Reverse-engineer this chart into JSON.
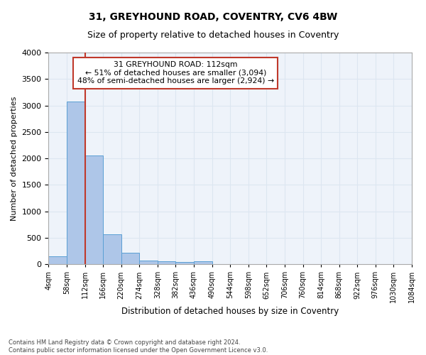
{
  "title1": "31, GREYHOUND ROAD, COVENTRY, CV6 4BW",
  "title2": "Size of property relative to detached houses in Coventry",
  "xlabel": "Distribution of detached houses by size in Coventry",
  "ylabel": "Number of detached properties",
  "footnote1": "Contains HM Land Registry data © Crown copyright and database right 2024.",
  "footnote2": "Contains public sector information licensed under the Open Government Licence v3.0.",
  "annotation_line1": "31 GREYHOUND ROAD: 112sqm",
  "annotation_line2": "← 51% of detached houses are smaller (3,094)",
  "annotation_line3": "48% of semi-detached houses are larger (2,924) →",
  "property_size_sqm": 112,
  "bin_edges": [
    4,
    58,
    112,
    166,
    220,
    274,
    328,
    382,
    436,
    490,
    544,
    598,
    652,
    706,
    760,
    814,
    868,
    922,
    976,
    1030,
    1084
  ],
  "bin_counts": [
    150,
    3070,
    2060,
    570,
    220,
    75,
    55,
    45,
    55,
    0,
    0,
    0,
    0,
    0,
    0,
    0,
    0,
    0,
    0,
    0
  ],
  "bar_color": "#aec6e8",
  "bar_edge_color": "#5a9fd4",
  "red_line_color": "#c0392b",
  "annotation_box_edge_color": "#c0392b",
  "grid_color": "#dce6f1",
  "background_color": "#eef3fa",
  "ylim": [
    0,
    4000
  ],
  "yticks": [
    0,
    500,
    1000,
    1500,
    2000,
    2500,
    3000,
    3500,
    4000
  ]
}
